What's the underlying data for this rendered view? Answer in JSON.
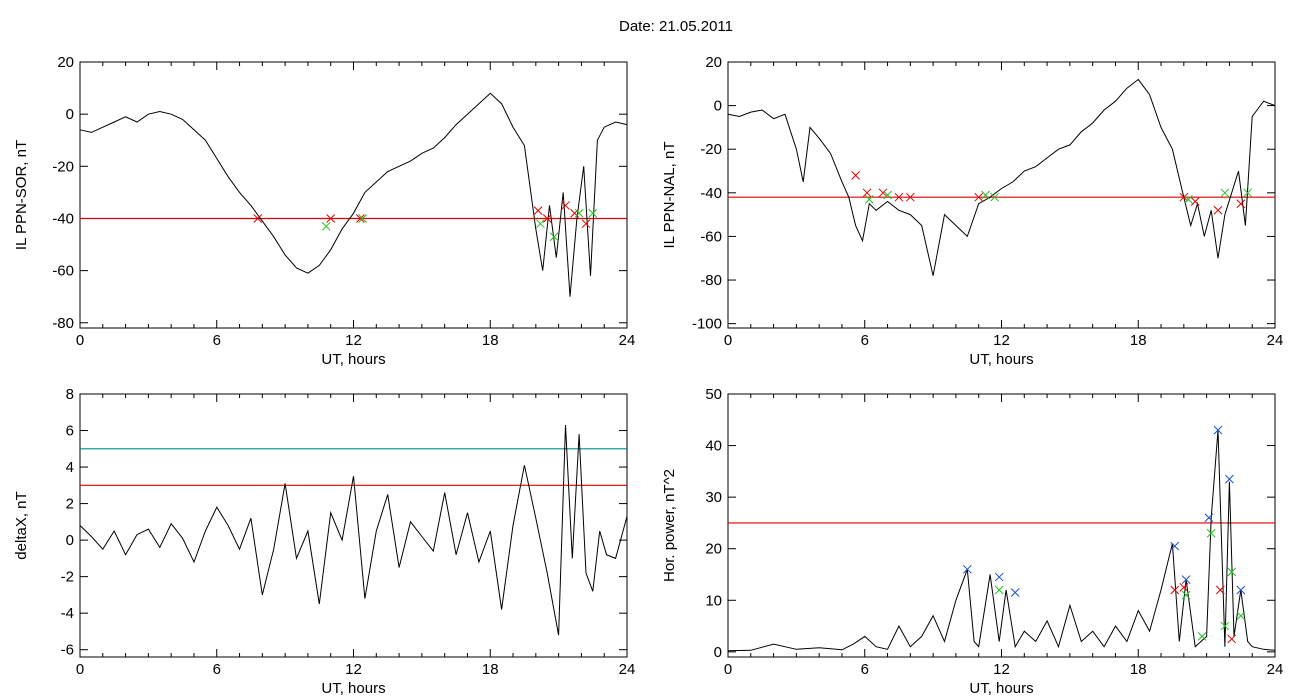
{
  "page_title": "Date:  21.05.2011",
  "chart_data": [
    {
      "type": "line",
      "ylabel": "IL PPN-SOR, nT",
      "xlabel": "UT, hours",
      "xlim": [
        0,
        24
      ],
      "ylim": [
        -82,
        20
      ],
      "xticks": [
        0,
        6,
        12,
        18,
        24
      ],
      "yticks": [
        20,
        0,
        -20,
        -40,
        -60,
        -80
      ],
      "threshold_lines": [
        {
          "y": -40,
          "color": "#e00000"
        }
      ],
      "series": [
        {
          "color": "#000000",
          "x": [
            0,
            0.5,
            1,
            1.5,
            2,
            2.5,
            3,
            3.5,
            4,
            4.5,
            5,
            5.5,
            6,
            6.5,
            7,
            7.5,
            8,
            8.5,
            9,
            9.5,
            10,
            10.5,
            11,
            11.5,
            12,
            12.5,
            13,
            13.5,
            14,
            14.5,
            15,
            15.5,
            16,
            16.5,
            17,
            17.5,
            18,
            18.5,
            19,
            19.5,
            20,
            20.3,
            20.6,
            20.9,
            21.2,
            21.5,
            21.8,
            22.1,
            22.4,
            22.7,
            23,
            23.5,
            24
          ],
          "y": [
            -6,
            -7,
            -5,
            -3,
            -1,
            -3,
            0,
            1,
            0,
            -2,
            -6,
            -10,
            -17,
            -24,
            -30,
            -35,
            -41,
            -47,
            -54,
            -59,
            -61,
            -58,
            -52,
            -44,
            -38,
            -30,
            -26,
            -22,
            -20,
            -18,
            -15,
            -13,
            -9,
            -4,
            0,
            4,
            8,
            4,
            -5,
            -12,
            -44,
            -60,
            -35,
            -55,
            -30,
            -70,
            -40,
            -20,
            -62,
            -10,
            -5,
            -3,
            -4
          ]
        }
      ],
      "markers": {
        "red_x": [
          [
            7.8,
            -40
          ],
          [
            11,
            -40
          ],
          [
            12.3,
            -40
          ],
          [
            20.1,
            -37
          ],
          [
            20.5,
            -40
          ],
          [
            21.3,
            -35
          ],
          [
            21.7,
            -38
          ],
          [
            22.2,
            -42
          ]
        ],
        "green_x": [
          [
            10.8,
            -43
          ],
          [
            12.4,
            -40
          ],
          [
            20.2,
            -42
          ],
          [
            20.8,
            -47
          ],
          [
            21.9,
            -38
          ],
          [
            22.5,
            -38
          ]
        ]
      }
    },
    {
      "type": "line",
      "ylabel": "IL PPN-NAL, nT",
      "xlabel": "UT, hours",
      "xlim": [
        0,
        24
      ],
      "ylim": [
        -102,
        20
      ],
      "xticks": [
        0,
        6,
        12,
        18,
        24
      ],
      "yticks": [
        20,
        0,
        -20,
        -40,
        -60,
        -80,
        -100
      ],
      "threshold_lines": [
        {
          "y": -42,
          "color": "#e00000"
        }
      ],
      "series": [
        {
          "color": "#000000",
          "x": [
            0,
            0.5,
            1,
            1.5,
            2,
            2.5,
            3,
            3.3,
            3.6,
            4,
            4.5,
            5,
            5.3,
            5.6,
            5.9,
            6.2,
            6.5,
            7,
            7.5,
            8,
            8.5,
            9,
            9.5,
            10,
            10.5,
            11,
            11.5,
            12,
            12.5,
            13,
            13.5,
            14,
            14.5,
            15,
            15.5,
            16,
            16.5,
            17,
            17.5,
            18,
            18.5,
            19,
            19.5,
            20,
            20.3,
            20.6,
            20.9,
            21.2,
            21.5,
            21.8,
            22.1,
            22.4,
            22.7,
            23,
            23.5,
            24
          ],
          "y": [
            -4,
            -5,
            -3,
            -2,
            -6,
            -4,
            -20,
            -35,
            -10,
            -15,
            -22,
            -35,
            -42,
            -55,
            -62,
            -45,
            -48,
            -44,
            -48,
            -50,
            -55,
            -78,
            -50,
            -55,
            -60,
            -45,
            -42,
            -38,
            -35,
            -30,
            -28,
            -24,
            -20,
            -18,
            -12,
            -8,
            -2,
            2,
            8,
            12,
            5,
            -10,
            -20,
            -42,
            -55,
            -45,
            -60,
            -48,
            -70,
            -50,
            -40,
            -30,
            -55,
            -5,
            2,
            0
          ]
        }
      ],
      "markers": {
        "red_x": [
          [
            5.6,
            -32
          ],
          [
            6.1,
            -40
          ],
          [
            6.8,
            -40
          ],
          [
            7.5,
            -42
          ],
          [
            8,
            -42
          ],
          [
            11,
            -42
          ],
          [
            20,
            -42
          ],
          [
            20.5,
            -44
          ],
          [
            21.5,
            -48
          ],
          [
            22.5,
            -45
          ]
        ],
        "green_x": [
          [
            6.2,
            -43
          ],
          [
            7,
            -41
          ],
          [
            11.3,
            -41
          ],
          [
            11.7,
            -42
          ],
          [
            20.2,
            -43
          ],
          [
            21.8,
            -40
          ],
          [
            22.8,
            -40
          ]
        ]
      }
    },
    {
      "type": "line",
      "ylabel": "deltaX, nT",
      "xlabel": "UT, hours",
      "xlim": [
        0,
        24
      ],
      "ylim": [
        -6.4,
        8
      ],
      "xticks": [
        0,
        6,
        12,
        18,
        24
      ],
      "yticks": [
        8,
        6,
        4,
        2,
        0,
        -2,
        -4,
        -6
      ],
      "threshold_lines": [
        {
          "y": 5,
          "color": "#008b8b"
        },
        {
          "y": 3,
          "color": "#e00000"
        }
      ],
      "series": [
        {
          "color": "#000000",
          "x": [
            0,
            0.5,
            1,
            1.5,
            2,
            2.5,
            3,
            3.5,
            4,
            4.5,
            5,
            5.5,
            6,
            6.5,
            7,
            7.5,
            8,
            8.5,
            9,
            9.5,
            10,
            10.5,
            11,
            11.5,
            12,
            12.5,
            13,
            13.5,
            14,
            14.5,
            15,
            15.5,
            16,
            16.5,
            17,
            17.5,
            18,
            18.5,
            19,
            19.5,
            20,
            20.5,
            21,
            21.3,
            21.6,
            21.9,
            22.2,
            22.5,
            22.8,
            23.1,
            23.5,
            24
          ],
          "y": [
            0.8,
            0.2,
            -0.5,
            0.5,
            -0.8,
            0.3,
            0.6,
            -0.4,
            0.9,
            0.1,
            -1.2,
            0.5,
            1.8,
            0.8,
            -0.5,
            1.2,
            -3,
            -0.5,
            3.1,
            -1,
            0.5,
            -3.5,
            1.5,
            0,
            3.5,
            -3.2,
            0.5,
            2.5,
            -1.5,
            1,
            0.2,
            -0.6,
            2.6,
            -0.8,
            1.5,
            -1.2,
            0.5,
            -3.8,
            0.8,
            4.1,
            1.2,
            -1.8,
            -5.2,
            6.3,
            -1,
            5.8,
            -1.8,
            -2.8,
            0.5,
            -0.8,
            -1,
            1.3
          ]
        }
      ]
    },
    {
      "type": "line",
      "ylabel": "Hor. power, nT^2",
      "xlabel": "UT, hours",
      "xlim": [
        0,
        24
      ],
      "ylim": [
        -1,
        50
      ],
      "xticks": [
        0,
        6,
        12,
        18,
        24
      ],
      "yticks": [
        50,
        40,
        30,
        20,
        10,
        0
      ],
      "threshold_lines": [
        {
          "y": 25,
          "color": "#e00000"
        }
      ],
      "series": [
        {
          "color": "#000000",
          "x": [
            0,
            1,
            2,
            3,
            4,
            5,
            5.5,
            6,
            6.5,
            7,
            7.5,
            8,
            8.5,
            9,
            9.5,
            10,
            10.5,
            10.8,
            11,
            11.5,
            11.9,
            12.2,
            12.6,
            13,
            13.5,
            14,
            14.5,
            15,
            15.5,
            16,
            16.5,
            17,
            17.5,
            18,
            18.5,
            19,
            19.5,
            19.8,
            20.1,
            20.5,
            21,
            21.2,
            21.5,
            21.8,
            22,
            22.2,
            22.5,
            22.8,
            23,
            23.5,
            24
          ],
          "y": [
            0.2,
            0.3,
            1.5,
            0.5,
            0.8,
            0.4,
            1.5,
            3,
            1,
            0.5,
            5,
            1,
            3,
            7,
            2,
            10,
            16,
            2,
            1,
            15,
            2,
            12,
            1,
            4,
            2,
            6,
            1,
            9,
            2,
            4,
            1,
            5,
            2,
            8,
            4,
            12,
            21,
            2,
            14,
            1,
            3,
            26,
            43,
            1,
            33,
            3,
            12,
            2,
            1,
            0.5,
            0.3
          ]
        }
      ],
      "markers": {
        "blue_x": [
          [
            10.5,
            16
          ],
          [
            11.9,
            14.5
          ],
          [
            12.6,
            11.5
          ],
          [
            19.6,
            20.5
          ],
          [
            20.1,
            14
          ],
          [
            21.1,
            26
          ],
          [
            21.5,
            43
          ],
          [
            22,
            33.5
          ],
          [
            22.5,
            12
          ]
        ],
        "red_x": [
          [
            19.6,
            12
          ],
          [
            20,
            12.5
          ],
          [
            21.6,
            12
          ],
          [
            22.1,
            2.5
          ]
        ],
        "green_x": [
          [
            11.9,
            12
          ],
          [
            20.1,
            11
          ],
          [
            20.8,
            3
          ],
          [
            21.2,
            23
          ],
          [
            21.8,
            5
          ],
          [
            22.1,
            15.5
          ],
          [
            22.5,
            7
          ]
        ]
      }
    }
  ]
}
